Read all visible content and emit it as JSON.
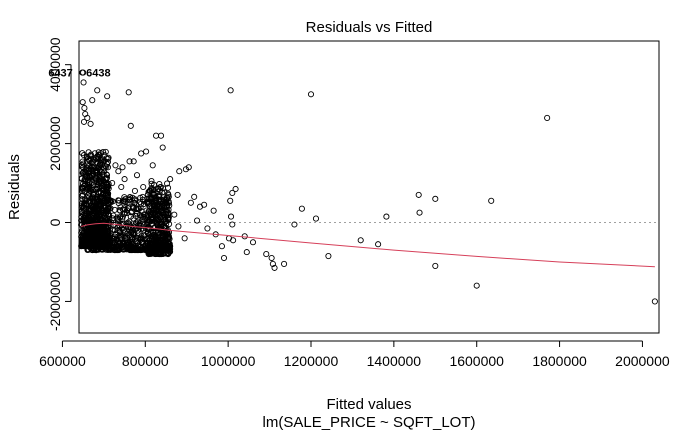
{
  "chart_data": {
    "type": "scatter",
    "title": "Residuals vs Fitted",
    "xlabel": "Fitted values",
    "ylabel": "Residuals",
    "subtitle": "lm(SALE_PRICE ~ SQFT_LOT)",
    "xlim": [
      640000,
      2040000
    ],
    "ylim": [
      -2800000,
      4600000
    ],
    "xticks": [
      600000,
      800000,
      1000000,
      1200000,
      1400000,
      1600000,
      1800000,
      2000000
    ],
    "xtick_labels": [
      "600000",
      "800000",
      "1000000",
      "1200000",
      "1400000",
      "1600000",
      "1800000",
      "2000000"
    ],
    "yticks": [
      -2000000,
      0,
      2000000,
      4000000
    ],
    "ytick_labels": [
      "-2000000",
      "0",
      "2000000",
      "4000000"
    ],
    "reference_line": 0,
    "grid": false,
    "point_color": "#000000",
    "smooth_color": "#d6405a",
    "ref_line_color": "#a0a0a0",
    "outlier_labels": [
      {
        "label": "6437",
        "x": 648000,
        "y": 3800000
      },
      {
        "label": "6438",
        "x": 650000,
        "y": 3800000
      }
    ],
    "overlap_label": "6437",
    "overlap_label_2": "6438",
    "points": [
      [
        648000,
        3800000
      ],
      [
        650000,
        3800000
      ],
      [
        651000,
        3550000
      ],
      [
        649000,
        3050000
      ],
      [
        684000,
        3350000
      ],
      [
        672000,
        3100000
      ],
      [
        708000,
        3200000
      ],
      [
        760000,
        3300000
      ],
      [
        1006000,
        3350000
      ],
      [
        1200000,
        3250000
      ],
      [
        1770000,
        2650000
      ],
      [
        653000,
        2900000
      ],
      [
        655000,
        2750000
      ],
      [
        660000,
        2650000
      ],
      [
        668000,
        2500000
      ],
      [
        652000,
        2550000
      ],
      [
        765000,
        2450000
      ],
      [
        826000,
        2200000
      ],
      [
        838000,
        2200000
      ],
      [
        842000,
        1900000
      ],
      [
        802000,
        1800000
      ],
      [
        790000,
        1750000
      ],
      [
        772000,
        1550000
      ],
      [
        762000,
        1550000
      ],
      [
        818000,
        1450000
      ],
      [
        745000,
        1400000
      ],
      [
        905000,
        1400000
      ],
      [
        898000,
        1350000
      ],
      [
        882000,
        1300000
      ],
      [
        690000,
        1700000
      ],
      [
        700000,
        1550000
      ],
      [
        710000,
        1400000
      ],
      [
        728000,
        1450000
      ],
      [
        735000,
        1300000
      ],
      [
        860000,
        1100000
      ],
      [
        830000,
        850000
      ],
      [
        878000,
        700000
      ],
      [
        918000,
        650000
      ],
      [
        932000,
        400000
      ],
      [
        942000,
        450000
      ],
      [
        1010000,
        750000
      ],
      [
        1018000,
        850000
      ],
      [
        1005000,
        550000
      ],
      [
        1007000,
        150000
      ],
      [
        1010000,
        -50000
      ],
      [
        1002000,
        -400000
      ],
      [
        1012000,
        -450000
      ],
      [
        1045000,
        -750000
      ],
      [
        1092000,
        -800000
      ],
      [
        1060000,
        -500000
      ],
      [
        970000,
        -300000
      ],
      [
        1105000,
        -900000
      ],
      [
        1108000,
        -1050000
      ],
      [
        1112000,
        -1150000
      ],
      [
        1135000,
        -1050000
      ],
      [
        1160000,
        -50000
      ],
      [
        1178000,
        350000
      ],
      [
        1212000,
        100000
      ],
      [
        1242000,
        -850000
      ],
      [
        1320000,
        -450000
      ],
      [
        1362000,
        -550000
      ],
      [
        1382000,
        150000
      ],
      [
        1460000,
        700000
      ],
      [
        1462000,
        250000
      ],
      [
        1500000,
        600000
      ],
      [
        1500000,
        -1100000
      ],
      [
        1600000,
        -1600000
      ],
      [
        1635000,
        550000
      ],
      [
        2030000,
        -2000000
      ],
      [
        910000,
        500000
      ],
      [
        925000,
        50000
      ],
      [
        950000,
        -150000
      ],
      [
        965000,
        300000
      ],
      [
        985000,
        -600000
      ],
      [
        990000,
        -900000
      ],
      [
        1040000,
        -350000
      ],
      [
        880000,
        -100000
      ],
      [
        895000,
        -400000
      ],
      [
        870000,
        200000
      ],
      [
        860000,
        -600000
      ],
      [
        850000,
        500000
      ],
      [
        855000,
        -800000
      ],
      [
        780000,
        1200000
      ],
      [
        750000,
        1100000
      ],
      [
        720000,
        1000000
      ],
      [
        815000,
        1050000
      ],
      [
        795000,
        900000
      ],
      [
        775000,
        800000
      ],
      [
        742000,
        900000
      ]
    ],
    "dense_clusters": [
      {
        "x_min": 645000,
        "x_max": 712000,
        "y_min": -600000,
        "y_max": 1800000,
        "count": 750
      },
      {
        "x_min": 660000,
        "x_max": 860000,
        "y_min": -700000,
        "y_max": 650000,
        "count": 700
      },
      {
        "x_min": 805000,
        "x_max": 860000,
        "y_min": -800000,
        "y_max": 1000000,
        "count": 250
      }
    ],
    "smooth_line": [
      [
        645000,
        -100000
      ],
      [
        660000,
        -60000
      ],
      [
        680000,
        -30000
      ],
      [
        700000,
        -20000
      ],
      [
        730000,
        -50000
      ],
      [
        770000,
        -100000
      ],
      [
        820000,
        -150000
      ],
      [
        860000,
        -200000
      ],
      [
        1000000,
        -330000
      ],
      [
        1200000,
        -520000
      ],
      [
        1400000,
        -700000
      ],
      [
        1600000,
        -860000
      ],
      [
        1800000,
        -1000000
      ],
      [
        2030000,
        -1120000
      ]
    ]
  }
}
